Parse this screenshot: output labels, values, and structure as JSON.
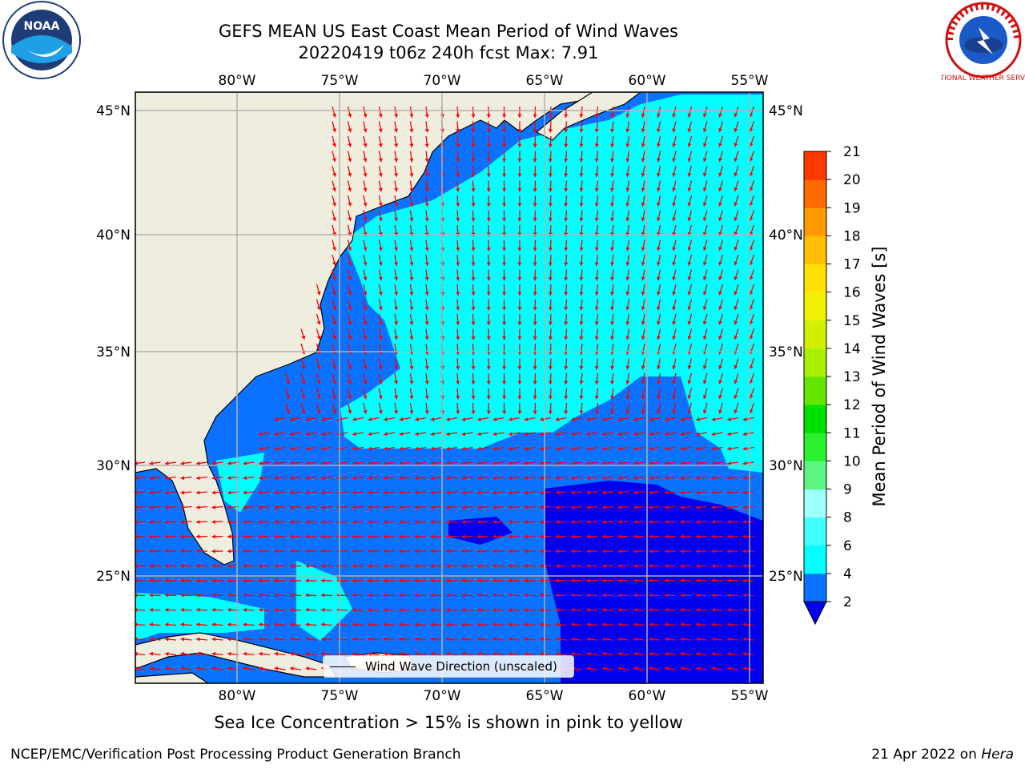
{
  "title": {
    "line1": "GEFS MEAN US East Coast Mean Period of Wind Waves",
    "line2": "20220419 t06z 240h fcst   Max: 7.91"
  },
  "axes": {
    "lon_ticks": [
      "80°W",
      "75°W",
      "70°W",
      "65°W",
      "60°W",
      "55°W"
    ],
    "lat_ticks": [
      "45°N",
      "40°N",
      "35°N",
      "30°N",
      "25°N"
    ]
  },
  "colorbar": {
    "label": "Mean Period of Wind Waves [s]",
    "ticks": [
      "2",
      "4",
      "6",
      "8",
      "9",
      "10",
      "11",
      "12",
      "13",
      "14",
      "15",
      "16",
      "17",
      "18",
      "19",
      "20",
      "21"
    ],
    "colors": [
      "#0a72ff",
      "#00ffff",
      "#40ffff",
      "#9ffffb",
      "#5cf582",
      "#2cf030",
      "#00e000",
      "#62e600",
      "#a7f000",
      "#d0f000",
      "#f0f000",
      "#ffe000",
      "#ffbf00",
      "#ff9900",
      "#ff6a00",
      "#ff3800",
      "#ff0000"
    ],
    "under_color": "#0000ee"
  },
  "legend": {
    "label": "Wind Wave Direction (unscaled)"
  },
  "note": "Sea Ice Concentration > 15% is shown in pink to yellow",
  "footer": {
    "left": "NCEP/EMC/Verification Post Processing Product Generation Branch",
    "date": "21 Apr 2022 on",
    "host": "Hera"
  },
  "logos": {
    "left": "NOAA",
    "right": "NATIONAL WEATHER SERVICE"
  },
  "map_colors": {
    "land": "#efedde",
    "period_2_4": "#0a72ff",
    "period_4_6": "#00ffff",
    "period_under_2": "#0000ee",
    "arrows": "#ff0000",
    "grid": "#b0b0b0"
  }
}
